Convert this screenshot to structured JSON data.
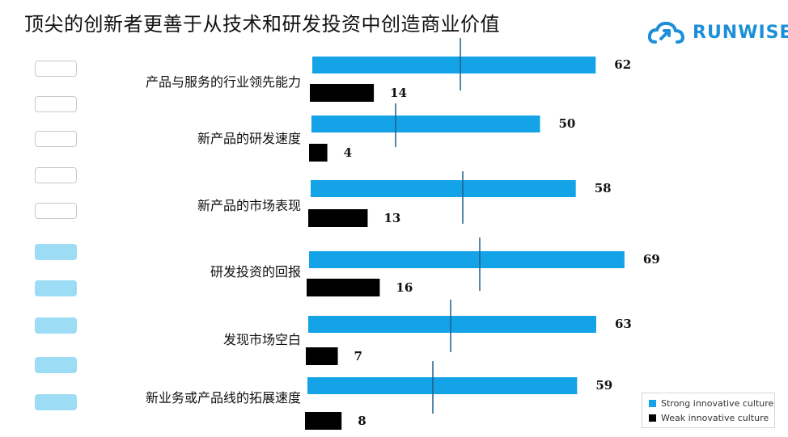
{
  "title": "顶尖的创新者更善于从技术和研发投资中创造商业价值",
  "logo": {
    "text": "RUNWISE",
    "icon": "cloud-arrow-icon"
  },
  "colors": {
    "strong": "#13a3e6",
    "weak": "#000000",
    "accent": "#1c8fd8"
  },
  "chart_data": {
    "type": "bar",
    "orientation": "horizontal",
    "categories": [
      "产品与服务的行业领先能力",
      "新产品的研发速度",
      "新产品的市场表现",
      "研发投资的回报",
      "发现市场空白",
      "新业务或产品线的拓展速度"
    ],
    "series": [
      {
        "name": "Strong innovative culture",
        "values": [
          62,
          50,
          58,
          69,
          63,
          59
        ]
      },
      {
        "name": "Weak innovative culture",
        "values": [
          14,
          4,
          13,
          16,
          7,
          8
        ]
      }
    ],
    "xlim": [
      0,
      100
    ],
    "legend": "bottom-right",
    "grid": false
  }
}
